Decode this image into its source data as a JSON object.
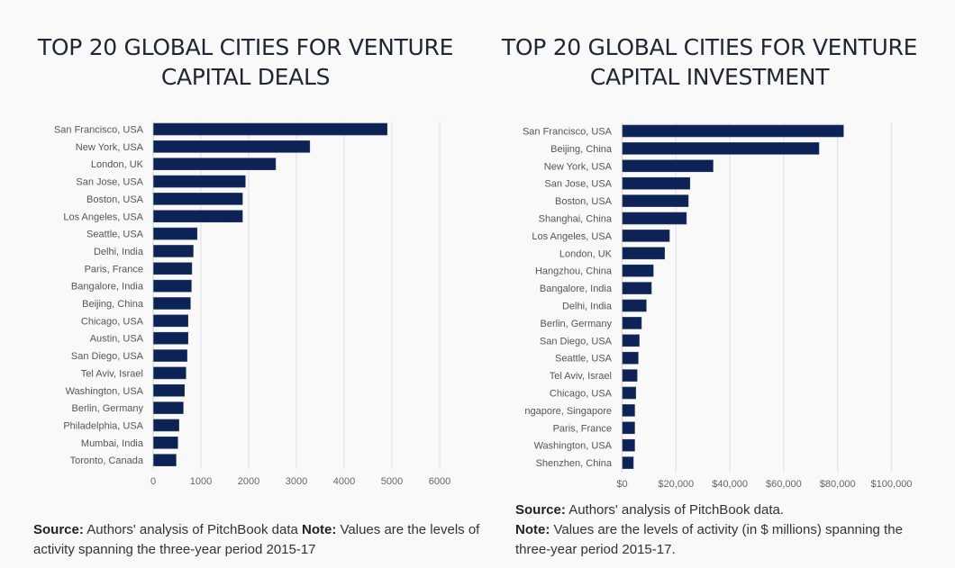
{
  "chart_data": [
    {
      "type": "bar",
      "orientation": "horizontal",
      "title": "TOP 20 GLOBAL CITIES FOR VENTURE CAPITAL DEALS",
      "xlabel": "",
      "ylabel": "",
      "xlim": [
        0,
        6000
      ],
      "ticks": [
        0,
        1000,
        2000,
        3000,
        4000,
        5000,
        6000
      ],
      "tick_labels": [
        "0",
        "1000",
        "2000",
        "3000",
        "4000",
        "5000",
        "6000"
      ],
      "grid": true,
      "bar_color": "#0d2355",
      "categories": [
        "San Francisco, USA",
        "New York, USA",
        "London, UK",
        "San Jose, USA",
        "Boston, USA",
        "Los Angeles, USA",
        "Seattle, USA",
        "Delhi, India",
        "Paris, France",
        "Bangalore, India",
        "Beijing, China",
        "Chicago, USA",
        "Austin, USA",
        "San Diego, USA",
        "Tel Aviv, Israel",
        "Washington, USA",
        "Berlin, Germany",
        "Philadelphia, USA",
        "Mumbai, India",
        "Toronto, Canada"
      ],
      "values": [
        4890,
        3270,
        2555,
        1920,
        1860,
        1860,
        910,
        830,
        800,
        790,
        770,
        720,
        720,
        700,
        675,
        645,
        620,
        530,
        505,
        470
      ]
    },
    {
      "type": "bar",
      "orientation": "horizontal",
      "title": "TOP 20 GLOBAL CITIES FOR VENTURE CAPITAL INVESTMENT",
      "xlabel": "",
      "ylabel": "",
      "xlim": [
        0,
        100000
      ],
      "ticks": [
        0,
        20000,
        40000,
        60000,
        80000,
        100000
      ],
      "tick_labels": [
        "$0",
        "$20,000",
        "$40,000",
        "$60,000",
        "$80,000",
        "$100,000"
      ],
      "grid": true,
      "bar_color": "#0d2355",
      "categories": [
        "San Francisco, USA",
        "Beijing, China",
        "New York, USA",
        "San Jose, USA",
        "Boston, USA",
        "Shanghai, China",
        "Los Angeles, USA",
        "London, UK",
        "Hangzhou, China",
        "Bangalore, India",
        "Delhi, India",
        "Berlin, Germany",
        "San Diego, USA",
        "Seattle, USA",
        "Tel Aviv, Israel",
        "Chicago, USA",
        "ngapore, Singapore",
        "Paris, France",
        "Washington, USA",
        "Shenzhen, China"
      ],
      "values": [
        82000,
        72900,
        33600,
        25000,
        24400,
        23700,
        17400,
        15600,
        11400,
        10700,
        8800,
        7000,
        6200,
        5800,
        5400,
        4900,
        4500,
        4500,
        4500,
        4000
      ]
    }
  ],
  "titles": {
    "left": "TOP 20 GLOBAL CITIES FOR VENTURE CAPITAL DEALS",
    "right": "TOP 20 GLOBAL CITIES FOR VENTURE CAPITAL INVESTMENT"
  },
  "notes": {
    "left": {
      "source_label": "Source:",
      "source_text": " Authors' analysis of PitchBook data  ",
      "note_label": "Note:",
      "note_text": " Values are the levels of activity spanning the three-year period 2015-17"
    },
    "right": {
      "source_label": "Source:",
      "source_text": " Authors' analysis of PitchBook data.",
      "note_label": "Note:",
      "note_text": " Values are the levels of activity (in $ millions) spanning the three-year period 2015-17."
    }
  }
}
